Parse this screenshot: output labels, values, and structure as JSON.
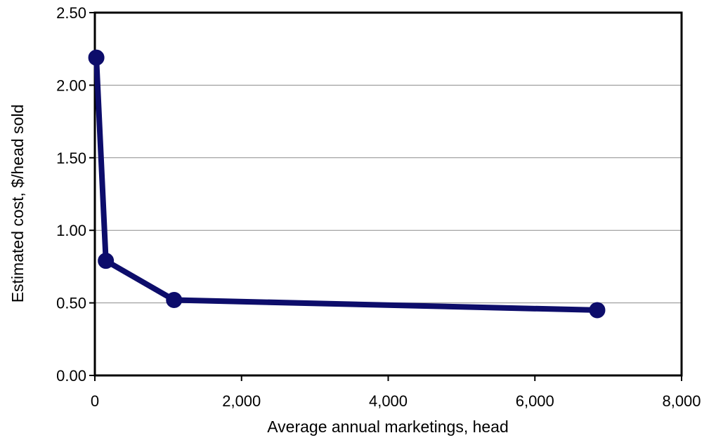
{
  "chart_data": {
    "type": "line",
    "title": "",
    "xlabel": "Average annual marketings, head",
    "ylabel": "Estimated cost, $/head sold",
    "xlim": [
      0,
      8000
    ],
    "ylim": [
      0,
      2.5
    ],
    "x_ticks": [
      0,
      2000,
      4000,
      6000,
      8000
    ],
    "x_tick_labels": [
      "0",
      "2,000",
      "4,000",
      "6,000",
      "8,000"
    ],
    "y_ticks": [
      0,
      0.5,
      1.0,
      1.5,
      2.0,
      2.5
    ],
    "y_tick_labels": [
      "0.00",
      "0.50",
      "1.00",
      "1.50",
      "2.00",
      "2.50"
    ],
    "grid": "horizontal",
    "legend": "none",
    "series": [
      {
        "color": "#0d0d6b",
        "points": [
          {
            "x": 20,
            "y": 2.19
          },
          {
            "x": 150,
            "y": 0.79
          },
          {
            "x": 1080,
            "y": 0.52
          },
          {
            "x": 6850,
            "y": 0.45
          }
        ]
      }
    ]
  }
}
